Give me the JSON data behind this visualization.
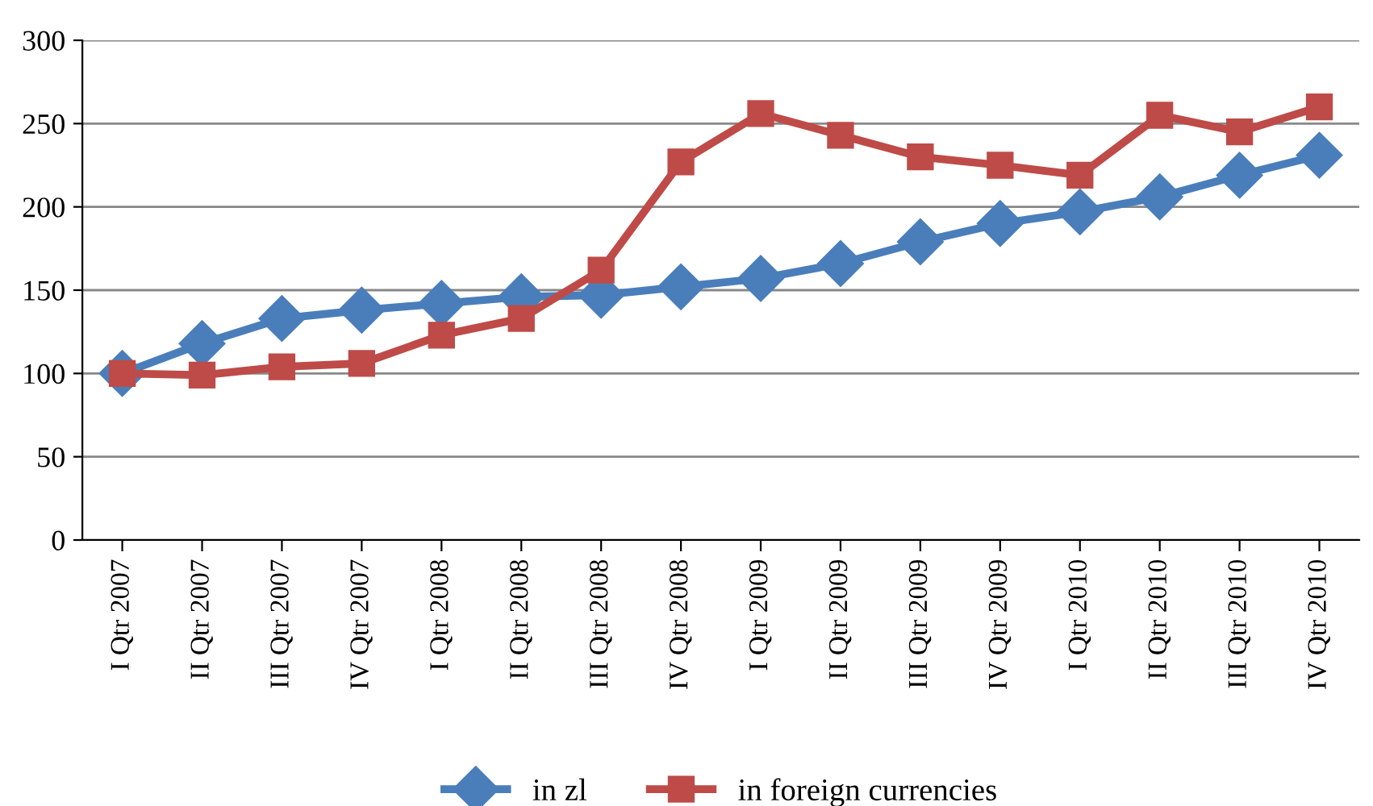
{
  "chart_data": {
    "type": "line",
    "categories": [
      "I Qtr 2007",
      "II Qtr 2007",
      "III Qtr 2007",
      "IV Qtr 2007",
      "I Qtr 2008",
      "II Qtr 2008",
      "III Qtr 2008",
      "IV Qtr 2008",
      "I Qtr 2009",
      "II Qtr 2009",
      "III Qtr 2009",
      "IV Qtr 2009",
      "I Qtr 2010",
      "II Qtr 2010",
      "III Qtr 2010",
      "IV Qtr 2010"
    ],
    "series": [
      {
        "name": "in zl",
        "color": "#4a7ebb",
        "marker": "diamond",
        "values": [
          100,
          118,
          133,
          138,
          142,
          146,
          147,
          152,
          157,
          166,
          179,
          190,
          197,
          206,
          219,
          231
        ]
      },
      {
        "name": "in foreign currencies",
        "color": "#be4b48",
        "marker": "square",
        "values": [
          100,
          99,
          104,
          106,
          123,
          133,
          162,
          227,
          256,
          243,
          230,
          225,
          219,
          255,
          245,
          260
        ]
      }
    ],
    "ylim": [
      0,
      300
    ],
    "yticks": [
      0,
      50,
      100,
      150,
      200,
      250,
      300
    ],
    "grid": "y",
    "legend": "bottom"
  }
}
